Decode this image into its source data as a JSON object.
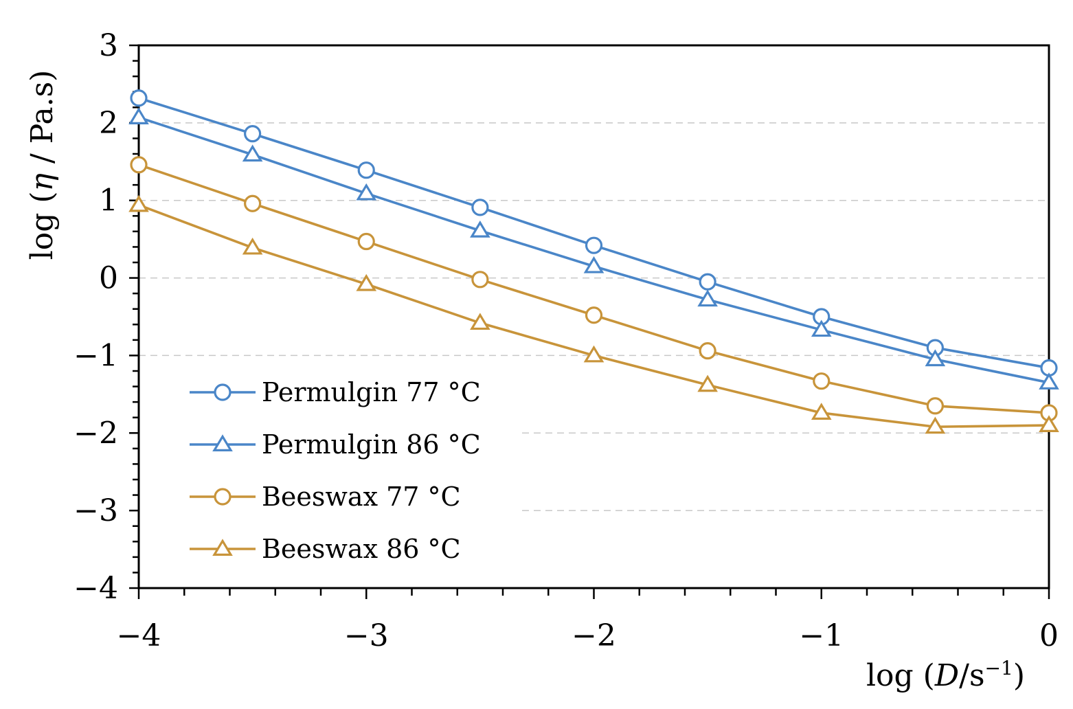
{
  "chart_data": {
    "type": "line",
    "xlabel": {
      "prefix": "log (",
      "var": "D",
      "mid": "/s",
      "sup": "−1",
      "suffix": ")"
    },
    "ylabel": {
      "prefix": "log (",
      "var": "η",
      "suffix": " / Pa.s)"
    },
    "xlim": [
      -4,
      0
    ],
    "ylim": [
      -4,
      3
    ],
    "x_ticks": [
      -4,
      -3,
      -2,
      -1,
      0
    ],
    "x_tick_labels": [
      "−4",
      "−3",
      "−2",
      "−1",
      "0"
    ],
    "y_ticks": [
      3,
      2,
      1,
      0,
      -1,
      -2,
      -3,
      -4
    ],
    "y_tick_labels": [
      "3",
      "2",
      "1",
      "0",
      "−1",
      "−2",
      "−3",
      "−4"
    ],
    "grid": "horizontal dashed",
    "legend_position": "bottom-left",
    "x": [
      -4,
      -3.5,
      -3,
      -2.5,
      -2,
      -1.5,
      -1,
      -0.5,
      0
    ],
    "series": [
      {
        "name": "Permulgin 77 °C",
        "marker": "circle",
        "color": "#4a86c8",
        "values": [
          2.32,
          1.86,
          1.39,
          0.91,
          0.42,
          -0.05,
          -0.5,
          -0.9,
          -1.16
        ]
      },
      {
        "name": "Permulgin 86 °C",
        "marker": "triangle",
        "color": "#4a86c8",
        "values": [
          2.07,
          1.59,
          1.09,
          0.61,
          0.15,
          -0.28,
          -0.67,
          -1.05,
          -1.35
        ]
      },
      {
        "name": "Beeswax 77 °C",
        "marker": "circle",
        "color": "#c8943a",
        "values": [
          1.46,
          0.96,
          0.47,
          -0.02,
          -0.48,
          -0.94,
          -1.33,
          -1.65,
          -1.74
        ]
      },
      {
        "name": "Beeswax 86 °C",
        "marker": "triangle",
        "color": "#c8943a",
        "values": [
          0.94,
          0.39,
          -0.08,
          -0.58,
          -1.0,
          -1.38,
          -1.74,
          -1.92,
          -1.9
        ]
      }
    ]
  }
}
